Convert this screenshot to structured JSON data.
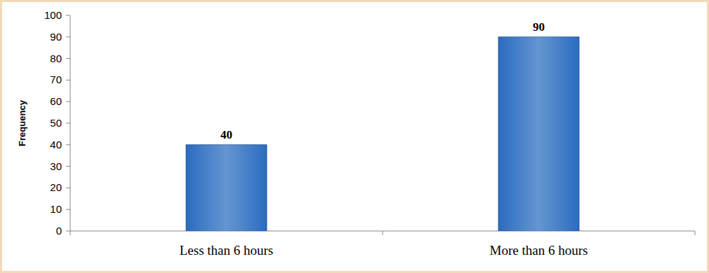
{
  "chart_data": {
    "type": "bar",
    "y_label": "Frequency",
    "categories": [
      "Less than 6 hours",
      "More than 6 hours"
    ],
    "values": [
      40,
      90
    ],
    "color": "#2a6cc0",
    "ylim": [
      0,
      100
    ],
    "yticks": [
      0,
      10,
      20,
      30,
      40,
      50,
      60,
      70,
      80,
      90,
      100
    ],
    "grid": false,
    "data_labels": true
  }
}
